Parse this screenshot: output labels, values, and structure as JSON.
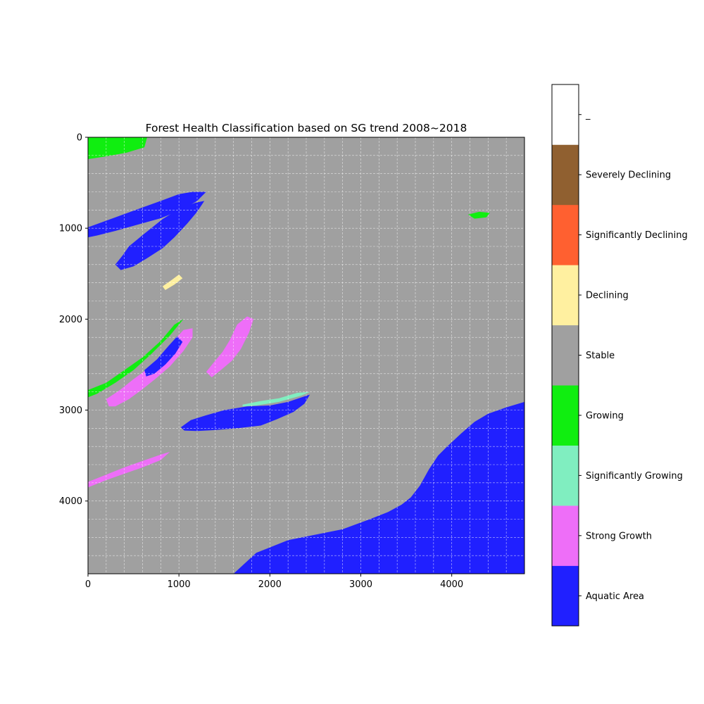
{
  "chart_data": {
    "type": "heatmap",
    "title": "Forest Health Classification based on SG trend 2008~2018",
    "xlabel": "",
    "ylabel": "",
    "xlim": [
      0,
      4800
    ],
    "ylim": [
      4800,
      0
    ],
    "x_ticks": [
      "0",
      "1000",
      "2000",
      "3000",
      "4000"
    ],
    "x_tick_values": [
      0,
      1000,
      2000,
      3000,
      4000
    ],
    "y_ticks": [
      "0",
      "1000",
      "2000",
      "3000",
      "4000"
    ],
    "y_tick_values": [
      0,
      1000,
      2000,
      3000,
      4000
    ],
    "grid": true,
    "grid_step": 200,
    "colorbar": {
      "placement": "right",
      "classes": [
        {
          "label": "Aquatic Area",
          "color": "#2020ff"
        },
        {
          "label": "Strong Growth",
          "color": "#ee6ef8"
        },
        {
          "label": "Significantly Growing",
          "color": "#80eec0"
        },
        {
          "label": "Growing",
          "color": "#10ee10"
        },
        {
          "label": "Stable",
          "color": "#a0a0a0"
        },
        {
          "label": "Declining",
          "color": "#fff0a0"
        },
        {
          "label": "Significantly Declining",
          "color": "#ff6030"
        },
        {
          "label": "Severely Declining",
          "color": "#906030"
        },
        {
          "label": "_",
          "color": "#ffffff"
        }
      ]
    },
    "regions": [
      {
        "name": "ocean",
        "class": "Aquatic Area",
        "points": [
          [
            1600,
            4800
          ],
          [
            1850,
            4570
          ],
          [
            2200,
            4430
          ],
          [
            2500,
            4370
          ],
          [
            2800,
            4310
          ],
          [
            3100,
            4200
          ],
          [
            3300,
            4120
          ],
          [
            3450,
            4040
          ],
          [
            3550,
            3960
          ],
          [
            3650,
            3830
          ],
          [
            3750,
            3650
          ],
          [
            3850,
            3500
          ],
          [
            3950,
            3400
          ],
          [
            4100,
            3260
          ],
          [
            4250,
            3130
          ],
          [
            4400,
            3040
          ],
          [
            4600,
            2970
          ],
          [
            4800,
            2910
          ],
          [
            4800,
            4800
          ]
        ]
      },
      {
        "name": "large-lake",
        "class": "Aquatic Area",
        "points": [
          [
            1020,
            3190
          ],
          [
            1130,
            3110
          ],
          [
            1290,
            3060
          ],
          [
            1500,
            3000
          ],
          [
            1750,
            2960
          ],
          [
            2000,
            2950
          ],
          [
            2200,
            2910
          ],
          [
            2350,
            2860
          ],
          [
            2440,
            2830
          ],
          [
            2380,
            2930
          ],
          [
            2260,
            3020
          ],
          [
            2080,
            3100
          ],
          [
            1900,
            3170
          ],
          [
            1650,
            3200
          ],
          [
            1400,
            3220
          ],
          [
            1200,
            3230
          ],
          [
            1060,
            3225
          ]
        ]
      },
      {
        "name": "northwest-bay",
        "class": "Aquatic Area",
        "points": [
          [
            0,
            990
          ],
          [
            300,
            880
          ],
          [
            550,
            790
          ],
          [
            800,
            700
          ],
          [
            1000,
            625
          ],
          [
            1150,
            600
          ],
          [
            1300,
            600
          ],
          [
            1200,
            700
          ],
          [
            1050,
            790
          ],
          [
            800,
            890
          ],
          [
            550,
            960
          ],
          [
            300,
            1030
          ],
          [
            100,
            1080
          ],
          [
            0,
            1100
          ]
        ]
      },
      {
        "name": "northwest-lake-system",
        "class": "Aquatic Area",
        "points": [
          [
            450,
            1200
          ],
          [
            620,
            1060
          ],
          [
            820,
            900
          ],
          [
            1000,
            790
          ],
          [
            1180,
            720
          ],
          [
            1280,
            700
          ],
          [
            1200,
            820
          ],
          [
            1090,
            950
          ],
          [
            950,
            1100
          ],
          [
            820,
            1220
          ],
          [
            650,
            1330
          ],
          [
            500,
            1420
          ],
          [
            360,
            1460
          ],
          [
            300,
            1400
          ],
          [
            380,
            1300
          ]
        ]
      },
      {
        "name": "inlet",
        "class": "Aquatic Area",
        "points": [
          [
            2050,
            4600
          ],
          [
            2250,
            4500
          ],
          [
            2450,
            4450
          ],
          [
            2650,
            4430
          ],
          [
            2500,
            4510
          ],
          [
            2300,
            4560
          ],
          [
            2120,
            4620
          ]
        ]
      },
      {
        "name": "west-wetland",
        "class": "Strong Growth",
        "points": [
          [
            200,
            2880
          ],
          [
            350,
            2780
          ],
          [
            500,
            2660
          ],
          [
            650,
            2550
          ],
          [
            800,
            2400
          ],
          [
            950,
            2230
          ],
          [
            1050,
            2120
          ],
          [
            1150,
            2100
          ],
          [
            1150,
            2200
          ],
          [
            1050,
            2350
          ],
          [
            900,
            2520
          ],
          [
            750,
            2650
          ],
          [
            600,
            2770
          ],
          [
            450,
            2880
          ],
          [
            300,
            2960
          ],
          [
            230,
            2960
          ]
        ]
      },
      {
        "name": "west-wetland-core",
        "class": "Aquatic Area",
        "points": [
          [
            620,
            2560
          ],
          [
            760,
            2440
          ],
          [
            880,
            2300
          ],
          [
            980,
            2190
          ],
          [
            1040,
            2250
          ],
          [
            960,
            2380
          ],
          [
            850,
            2500
          ],
          [
            730,
            2600
          ],
          [
            640,
            2630
          ]
        ]
      },
      {
        "name": "central-wetland",
        "class": "Strong Growth",
        "points": [
          [
            1300,
            2580
          ],
          [
            1380,
            2480
          ],
          [
            1480,
            2360
          ],
          [
            1560,
            2230
          ],
          [
            1640,
            2060
          ],
          [
            1750,
            1970
          ],
          [
            1820,
            2000
          ],
          [
            1770,
            2150
          ],
          [
            1680,
            2330
          ],
          [
            1580,
            2460
          ],
          [
            1460,
            2560
          ],
          [
            1360,
            2640
          ]
        ]
      },
      {
        "name": "southwest-wetland",
        "class": "Strong Growth",
        "points": [
          [
            0,
            3790
          ],
          [
            200,
            3710
          ],
          [
            400,
            3630
          ],
          [
            600,
            3560
          ],
          [
            800,
            3490
          ],
          [
            900,
            3460
          ],
          [
            800,
            3550
          ],
          [
            600,
            3630
          ],
          [
            400,
            3700
          ],
          [
            200,
            3770
          ],
          [
            0,
            3850
          ]
        ]
      },
      {
        "name": "northwest-growth",
        "class": "Growing",
        "points": [
          [
            0,
            0
          ],
          [
            650,
            0
          ],
          [
            620,
            110
          ],
          [
            420,
            170
          ],
          [
            200,
            210
          ],
          [
            0,
            240
          ]
        ]
      },
      {
        "name": "west-growth-fringe",
        "class": "Growing",
        "points": [
          [
            0,
            2780
          ],
          [
            200,
            2700
          ],
          [
            400,
            2560
          ],
          [
            600,
            2420
          ],
          [
            800,
            2240
          ],
          [
            950,
            2060
          ],
          [
            1050,
            2000
          ],
          [
            900,
            2180
          ],
          [
            700,
            2380
          ],
          [
            500,
            2560
          ],
          [
            300,
            2700
          ],
          [
            100,
            2820
          ],
          [
            0,
            2860
          ]
        ]
      },
      {
        "name": "lake-shore-growth",
        "class": "Significantly Growing",
        "points": [
          [
            1700,
            2940
          ],
          [
            1900,
            2900
          ],
          [
            2100,
            2870
          ],
          [
            2300,
            2810
          ],
          [
            2440,
            2800
          ],
          [
            2350,
            2840
          ],
          [
            2100,
            2910
          ],
          [
            1850,
            2950
          ],
          [
            1700,
            2960
          ]
        ]
      },
      {
        "name": "northeast-growth",
        "class": "Growing",
        "points": [
          [
            4180,
            850
          ],
          [
            4300,
            820
          ],
          [
            4420,
            830
          ],
          [
            4380,
            880
          ],
          [
            4250,
            895
          ]
        ]
      },
      {
        "name": "declining-patch",
        "class": "Declining",
        "points": [
          [
            820,
            1640
          ],
          [
            920,
            1570
          ],
          [
            1000,
            1510
          ],
          [
            1040,
            1550
          ],
          [
            950,
            1620
          ],
          [
            850,
            1680
          ]
        ]
      }
    ]
  }
}
